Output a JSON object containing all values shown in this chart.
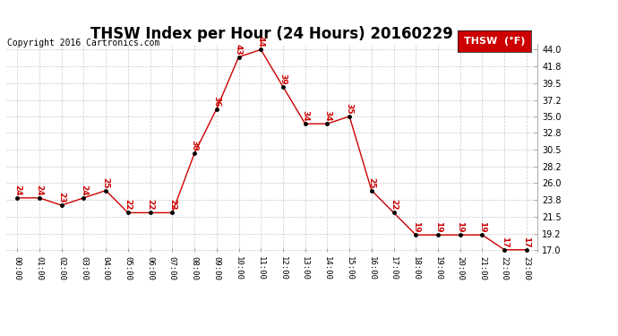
{
  "title": "THSW Index per Hour (24 Hours) 20160229",
  "copyright": "Copyright 2016 Cartronics.com",
  "legend_label": "THSW  (°F)",
  "hours": [
    0,
    1,
    2,
    3,
    4,
    5,
    6,
    7,
    8,
    9,
    10,
    11,
    12,
    13,
    14,
    15,
    16,
    17,
    18,
    19,
    20,
    21,
    22,
    23
  ],
  "values": [
    24,
    24,
    23,
    24,
    25,
    22,
    22,
    22,
    30,
    36,
    43,
    44,
    39,
    34,
    34,
    35,
    25,
    22,
    19,
    19,
    19,
    19,
    17,
    17
  ],
  "line_color": "#cc0000",
  "marker_color": "#000000",
  "label_color": "#cc0000",
  "bg_color": "#ffffff",
  "grid_color": "#bbbbbb",
  "ylim_min": 17.0,
  "ylim_max": 44.0,
  "yticks": [
    17.0,
    19.2,
    21.5,
    23.8,
    26.0,
    28.2,
    30.5,
    32.8,
    35.0,
    37.2,
    39.5,
    41.8,
    44.0
  ],
  "title_fontsize": 12,
  "copyright_fontsize": 7,
  "label_fontsize": 6.5,
  "legend_fontsize": 8,
  "tick_fontsize": 6.5
}
